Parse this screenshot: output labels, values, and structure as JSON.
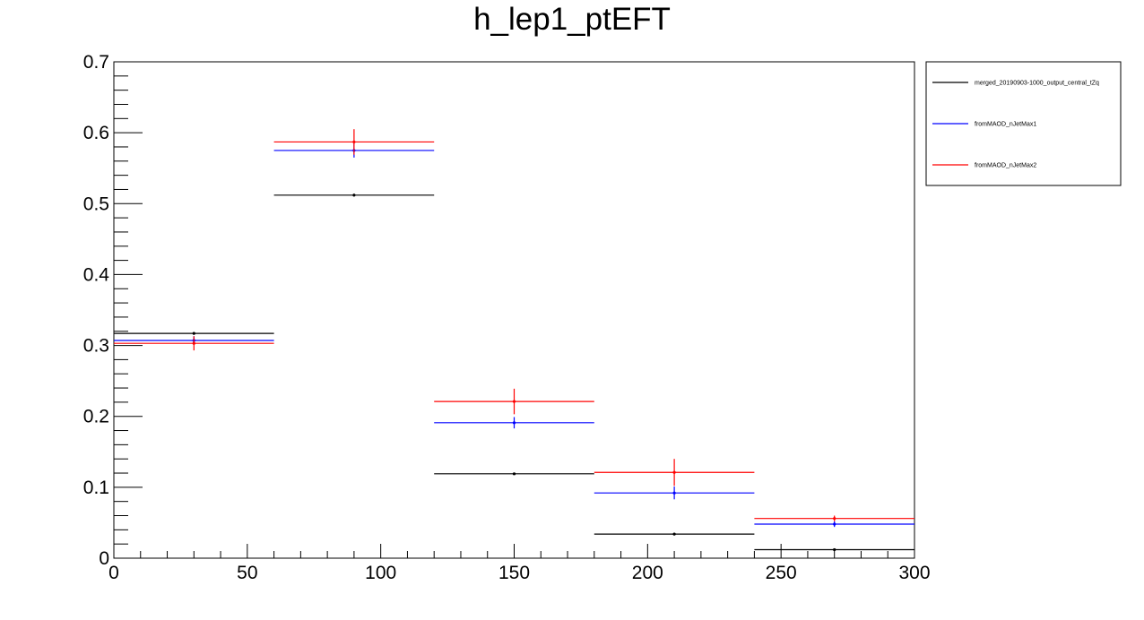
{
  "chart_data": {
    "type": "scatter",
    "title": "h_lep1_ptEFT",
    "xlabel": "",
    "ylabel": "",
    "xlim": [
      0,
      300
    ],
    "ylim": [
      0,
      0.7
    ],
    "grid": false,
    "legend_position": "top-right outside plot",
    "x_ticks": [
      0,
      50,
      100,
      150,
      200,
      250,
      300
    ],
    "y_ticks": [
      0,
      0.1,
      0.2,
      0.3,
      0.4,
      0.5,
      0.6,
      0.7
    ],
    "x_tick_labels": [
      "0",
      "50",
      "100",
      "150",
      "200",
      "250",
      "300"
    ],
    "y_tick_labels": [
      "0",
      "0.1",
      "0.2",
      "0.3",
      "0.4",
      "0.5",
      "0.6",
      "0.7"
    ],
    "bin_edges": [
      0,
      60,
      120,
      180,
      240,
      300
    ],
    "series": [
      {
        "name": "merged_20190903-1000_output_central_tZq",
        "color": "#000000",
        "values": [
          0.317,
          0.512,
          0.119,
          0.034,
          0.012
        ],
        "errors": [
          0.002,
          0.002,
          0.001,
          0.001,
          0.001
        ]
      },
      {
        "name": "fromMAOD_nJetMax1",
        "color": "#0000ff",
        "values": [
          0.307,
          0.575,
          0.191,
          0.092,
          0.048
        ],
        "errors": [
          0.006,
          0.01,
          0.008,
          0.009,
          0.004
        ]
      },
      {
        "name": "fromMAOD_nJetMax2",
        "color": "#ff0000",
        "values": [
          0.303,
          0.587,
          0.221,
          0.121,
          0.056
        ],
        "errors": [
          0.01,
          0.018,
          0.018,
          0.019,
          0.004
        ]
      }
    ]
  }
}
